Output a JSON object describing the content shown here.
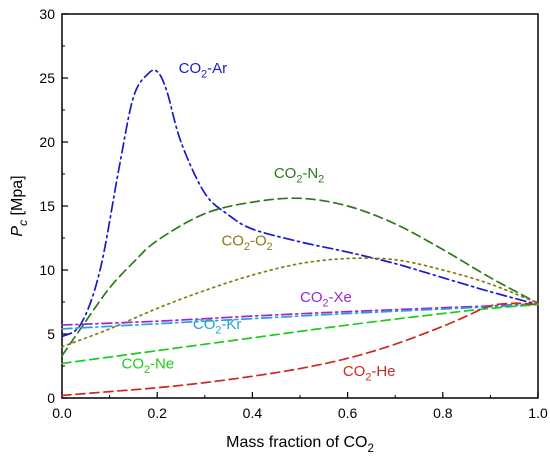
{
  "chart_data": {
    "type": "line",
    "xlabel": "Mass fraction of CO2",
    "ylabel": "Pc [Mpa]",
    "xlim": [
      0.0,
      1.0
    ],
    "ylim": [
      0,
      30
    ],
    "x_ticks": [
      "0.0",
      "0.2",
      "0.4",
      "0.6",
      "0.8",
      "1.0"
    ],
    "y_ticks": [
      "0",
      "5",
      "10",
      "15",
      "20",
      "25",
      "30"
    ],
    "grid": false,
    "series": [
      {
        "name": "CO2-Ar",
        "color": "#1a1acc",
        "dash": "dashdot",
        "x": [
          0.0,
          0.04,
          0.08,
          0.12,
          0.15,
          0.18,
          0.2,
          0.22,
          0.25,
          0.3,
          0.35,
          0.4,
          0.5,
          0.6,
          0.7,
          0.8,
          0.9,
          1.0
        ],
        "y": [
          4.8,
          5.8,
          10.0,
          18.0,
          23.5,
          25.3,
          25.5,
          24.0,
          20.0,
          16.0,
          14.3,
          13.2,
          12.2,
          11.4,
          10.5,
          9.4,
          8.3,
          7.3
        ]
      },
      {
        "name": "CO2-N2",
        "color": "#2a7a1a",
        "dash": "dashed",
        "x": [
          0.0,
          0.05,
          0.1,
          0.15,
          0.2,
          0.3,
          0.4,
          0.5,
          0.6,
          0.7,
          0.8,
          0.9,
          1.0
        ],
        "y": [
          3.3,
          6.0,
          8.6,
          10.6,
          12.3,
          14.4,
          15.3,
          15.6,
          15.0,
          13.6,
          11.6,
          9.4,
          7.4
        ]
      },
      {
        "name": "CO2-O2",
        "color": "#8a7a10",
        "dash": "dotted",
        "x": [
          0.0,
          0.1,
          0.2,
          0.3,
          0.4,
          0.5,
          0.6,
          0.7,
          0.8,
          0.9,
          1.0
        ],
        "y": [
          4.0,
          5.4,
          7.0,
          8.4,
          9.6,
          10.5,
          10.9,
          10.8,
          10.0,
          8.9,
          7.4
        ]
      },
      {
        "name": "CO2-Xe",
        "color": "#9a2acc",
        "dash": "dashdot",
        "x": [
          0.0,
          0.2,
          0.4,
          0.6,
          0.8,
          1.0
        ],
        "y": [
          5.7,
          6.0,
          6.4,
          6.75,
          7.05,
          7.35
        ]
      },
      {
        "name": "CO2-Kr",
        "color": "#2aa0d8",
        "dash": "dashdot",
        "x": [
          0.0,
          0.2,
          0.4,
          0.6,
          0.8,
          1.0
        ],
        "y": [
          5.4,
          5.8,
          6.2,
          6.6,
          6.95,
          7.3
        ]
      },
      {
        "name": "CO2-Ne",
        "color": "#1acc1a",
        "dash": "dashed",
        "x": [
          0.0,
          0.2,
          0.4,
          0.6,
          0.8,
          0.9,
          1.0
        ],
        "y": [
          2.7,
          3.7,
          4.7,
          5.7,
          6.6,
          7.0,
          7.3
        ]
      },
      {
        "name": "CO2-He",
        "color": "#cc2a1a",
        "dash": "dashed",
        "x": [
          0.0,
          0.1,
          0.2,
          0.3,
          0.4,
          0.5,
          0.6,
          0.7,
          0.8,
          0.85,
          0.9,
          0.95,
          1.0
        ],
        "y": [
          0.2,
          0.5,
          0.8,
          1.2,
          1.7,
          2.3,
          3.1,
          4.2,
          5.6,
          6.4,
          7.2,
          7.4,
          7.3
        ]
      }
    ],
    "annotations": [
      {
        "series": "CO2-Ar",
        "text": "CO2-Ar",
        "x": 0.245,
        "y": 25.4,
        "color": "#1a1acc"
      },
      {
        "series": "CO2-N2",
        "text": "CO2-N2",
        "x": 0.445,
        "y": 17.2,
        "color": "#2a7a1a"
      },
      {
        "series": "CO2-O2",
        "text": "CO2-O2",
        "x": 0.335,
        "y": 11.9,
        "color": "#8a7a10"
      },
      {
        "series": "CO2-Xe",
        "text": "CO2-Xe",
        "x": 0.5,
        "y": 7.5,
        "color": "#9a2acc"
      },
      {
        "series": "CO2-Kr",
        "text": "CO2-Kr",
        "x": 0.275,
        "y": 5.4,
        "color": "#2aa0d8"
      },
      {
        "series": "CO2-Ne",
        "text": "CO2-Ne",
        "x": 0.125,
        "y": 2.3,
        "color": "#1acc1a"
      },
      {
        "series": "CO2-He",
        "text": "CO2-He",
        "x": 0.59,
        "y": 1.7,
        "color": "#cc2a1a"
      }
    ]
  }
}
